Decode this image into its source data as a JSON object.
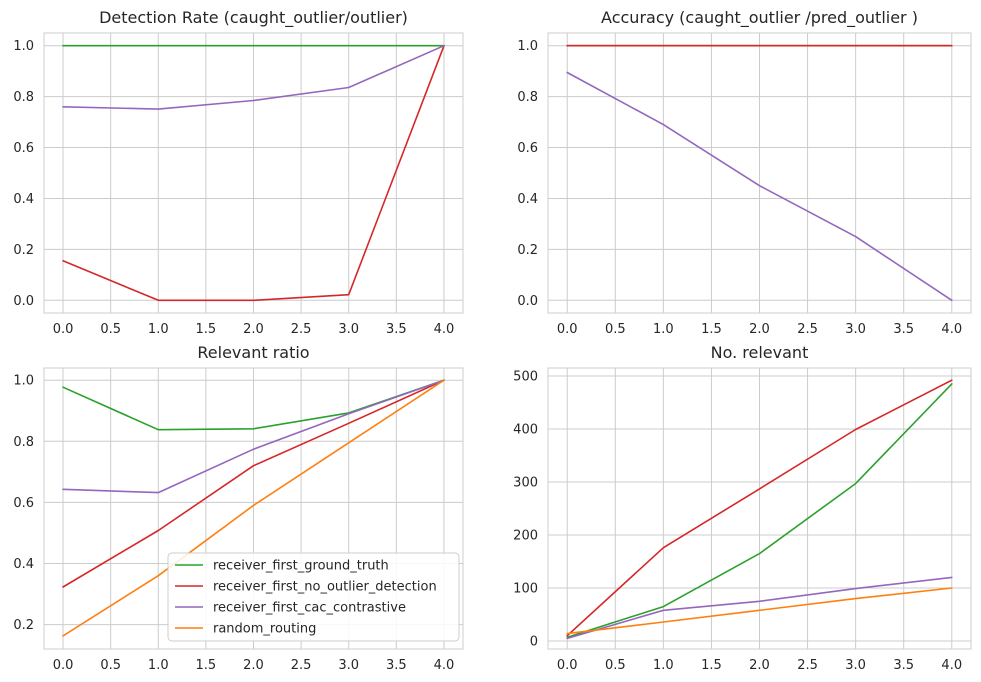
{
  "colors": {
    "receiver_first_ground_truth": "#2ca02c",
    "receiver_first_no_outlier_detection": "#d62728",
    "receiver_first_cac_contrastive": "#9467bd",
    "random_routing": "#ff7f0e",
    "grid": "#cccccc",
    "background": "#ffffff"
  },
  "chart_data": [
    {
      "type": "line",
      "title": "Detection Rate (caught_outlier/outlier)",
      "xlabel": "",
      "ylabel": "",
      "x": [
        0,
        1,
        2,
        3,
        4
      ],
      "xlim": [
        -0.2,
        4.2
      ],
      "ylim": [
        -0.05,
        1.05
      ],
      "xticks": [
        0.0,
        0.5,
        1.0,
        1.5,
        2.0,
        2.5,
        3.0,
        3.5,
        4.0
      ],
      "xtick_labels": [
        "0.0",
        "0.5",
        "1.0",
        "1.5",
        "2.0",
        "2.5",
        "3.0",
        "3.5",
        "4.0"
      ],
      "yticks": [
        0.0,
        0.2,
        0.4,
        0.6,
        0.8,
        1.0
      ],
      "ytick_labels": [
        "0.0",
        "0.2",
        "0.4",
        "0.6",
        "0.8",
        "1.0"
      ],
      "grid": true,
      "series": [
        {
          "key": "receiver_first_ground_truth",
          "values": [
            1.0,
            1.0,
            1.0,
            1.0,
            1.0
          ]
        },
        {
          "key": "receiver_first_no_outlier_detection",
          "values": [
            0.155,
            0.0,
            0.0,
            0.022,
            1.0
          ]
        },
        {
          "key": "receiver_first_cac_contrastive",
          "values": [
            0.76,
            0.751,
            0.785,
            0.836,
            1.0
          ]
        }
      ]
    },
    {
      "type": "line",
      "title": "Accuracy (caught_outlier /pred_outlier )",
      "xlabel": "",
      "ylabel": "",
      "x": [
        0,
        1,
        2,
        3,
        4
      ],
      "xlim": [
        -0.2,
        4.2
      ],
      "ylim": [
        -0.05,
        1.05
      ],
      "xticks": [
        0.0,
        0.5,
        1.0,
        1.5,
        2.0,
        2.5,
        3.0,
        3.5,
        4.0
      ],
      "xtick_labels": [
        "0.0",
        "0.5",
        "1.0",
        "1.5",
        "2.0",
        "2.5",
        "3.0",
        "3.5",
        "4.0"
      ],
      "yticks": [
        0.0,
        0.2,
        0.4,
        0.6,
        0.8,
        1.0
      ],
      "ytick_labels": [
        "0.0",
        "0.2",
        "0.4",
        "0.6",
        "0.8",
        "1.0"
      ],
      "grid": true,
      "series": [
        {
          "key": "receiver_first_ground_truth",
          "values": [
            1.0,
            1.0,
            1.0,
            1.0,
            1.0
          ]
        },
        {
          "key": "receiver_first_no_outlier_detection",
          "values": [
            1.0,
            1.0,
            1.0,
            1.0,
            1.0
          ]
        },
        {
          "key": "receiver_first_cac_contrastive",
          "values": [
            0.895,
            0.69,
            0.45,
            0.25,
            0.0
          ]
        }
      ]
    },
    {
      "type": "line",
      "title": "Relevant ratio",
      "xlabel": "",
      "ylabel": "",
      "x": [
        0,
        1,
        2,
        3,
        4
      ],
      "xlim": [
        -0.2,
        4.2
      ],
      "ylim": [
        0.12,
        1.04
      ],
      "xticks": [
        0.0,
        0.5,
        1.0,
        1.5,
        2.0,
        2.5,
        3.0,
        3.5,
        4.0
      ],
      "xtick_labels": [
        "0.0",
        "0.5",
        "1.0",
        "1.5",
        "2.0",
        "2.5",
        "3.0",
        "3.5",
        "4.0"
      ],
      "yticks": [
        0.2,
        0.4,
        0.6,
        0.8,
        1.0
      ],
      "ytick_labels": [
        "0.2",
        "0.4",
        "0.6",
        "0.8",
        "1.0"
      ],
      "grid": true,
      "legend": "lower-right",
      "series": [
        {
          "key": "receiver_first_ground_truth",
          "values": [
            0.977,
            0.838,
            0.841,
            0.893,
            1.0
          ]
        },
        {
          "key": "receiver_first_no_outlier_detection",
          "values": [
            0.323,
            0.508,
            0.72,
            0.859,
            1.0
          ]
        },
        {
          "key": "receiver_first_cac_contrastive",
          "values": [
            0.643,
            0.632,
            0.774,
            0.89,
            1.0
          ]
        },
        {
          "key": "random_routing",
          "values": [
            0.163,
            0.36,
            0.59,
            0.795,
            1.0
          ]
        }
      ]
    },
    {
      "type": "line",
      "title": "No. relevant",
      "xlabel": "",
      "ylabel": "",
      "x": [
        0,
        1,
        2,
        3,
        4
      ],
      "xlim": [
        -0.2,
        4.2
      ],
      "ylim": [
        -15,
        515
      ],
      "xticks": [
        0.0,
        0.5,
        1.0,
        1.5,
        2.0,
        2.5,
        3.0,
        3.5,
        4.0
      ],
      "xtick_labels": [
        "0.0",
        "0.5",
        "1.0",
        "1.5",
        "2.0",
        "2.5",
        "3.0",
        "3.5",
        "4.0"
      ],
      "yticks": [
        0,
        100,
        200,
        300,
        400,
        500
      ],
      "ytick_labels": [
        "0",
        "100",
        "200",
        "300",
        "400",
        "500"
      ],
      "grid": true,
      "series": [
        {
          "key": "receiver_first_ground_truth",
          "values": [
            7,
            65,
            165,
            297,
            485
          ]
        },
        {
          "key": "receiver_first_no_outlier_detection",
          "values": [
            10,
            176,
            287,
            399,
            492
          ]
        },
        {
          "key": "receiver_first_cac_contrastive",
          "values": [
            5,
            58,
            75,
            99,
            120
          ]
        },
        {
          "key": "random_routing",
          "values": [
            14,
            36,
            58,
            80,
            100
          ]
        }
      ]
    }
  ],
  "legend": [
    {
      "key": "receiver_first_ground_truth",
      "label": "receiver_first_ground_truth"
    },
    {
      "key": "receiver_first_no_outlier_detection",
      "label": "receiver_first_no_outlier_detection"
    },
    {
      "key": "receiver_first_cac_contrastive",
      "label": "receiver_first_cac_contrastive"
    },
    {
      "key": "random_routing",
      "label": "random_routing"
    }
  ]
}
